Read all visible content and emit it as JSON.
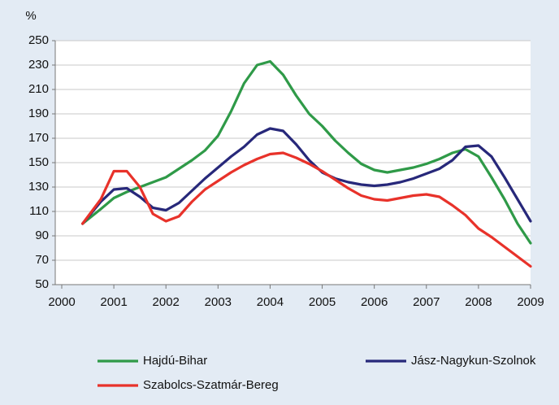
{
  "chart_data": {
    "type": "line",
    "ylabel": "%",
    "x": [
      2000.4,
      2000.75,
      2001,
      2001.25,
      2001.5,
      2001.75,
      2002,
      2002.25,
      2002.5,
      2002.75,
      2003,
      2003.25,
      2003.5,
      2003.75,
      2004,
      2004.25,
      2004.5,
      2004.75,
      2005,
      2005.25,
      2005.5,
      2005.75,
      2006,
      2006.25,
      2006.5,
      2006.75,
      2007,
      2007.25,
      2007.5,
      2007.75,
      2008,
      2008.25,
      2008.5,
      2008.75,
      2009
    ],
    "series": [
      {
        "name": "Hajdú-Bihar",
        "color": "#2f9a48",
        "values": [
          100,
          112,
          121,
          126,
          130,
          134,
          138,
          145,
          152,
          160,
          172,
          192,
          215,
          230,
          233,
          222,
          205,
          190,
          180,
          168,
          158,
          149,
          144,
          142,
          144,
          146,
          149,
          153,
          158,
          161,
          155,
          138,
          120,
          100,
          84
        ]
      },
      {
        "name": "Jász-Nagykun-Szolnok",
        "color": "#27287a",
        "values": [
          100,
          118,
          128,
          129,
          122,
          113,
          111,
          117,
          127,
          137,
          146,
          155,
          163,
          173,
          178,
          176,
          165,
          152,
          142,
          137,
          134,
          132,
          131,
          132,
          134,
          137,
          141,
          145,
          152,
          163,
          164,
          155,
          138,
          120,
          102
        ]
      },
      {
        "name": "Szabolcs-Szatmár-Bereg",
        "color": "#e8322a",
        "values": [
          100,
          120,
          143,
          143,
          130,
          108,
          102,
          106,
          118,
          128,
          135,
          142,
          148,
          153,
          157,
          158,
          154,
          149,
          143,
          136,
          129,
          123,
          120,
          119,
          121,
          123,
          124,
          122,
          115,
          107,
          96,
          89,
          81,
          73,
          65
        ]
      }
    ],
    "xlim": [
      2000,
      2009
    ],
    "xticks": [
      2000,
      2001,
      2002,
      2003,
      2004,
      2005,
      2006,
      2007,
      2008,
      2009
    ],
    "ylim": [
      50,
      250
    ],
    "yticks": [
      50,
      70,
      90,
      110,
      130,
      150,
      170,
      190,
      210,
      230,
      250
    ],
    "grid": true,
    "legend": "bottom"
  }
}
